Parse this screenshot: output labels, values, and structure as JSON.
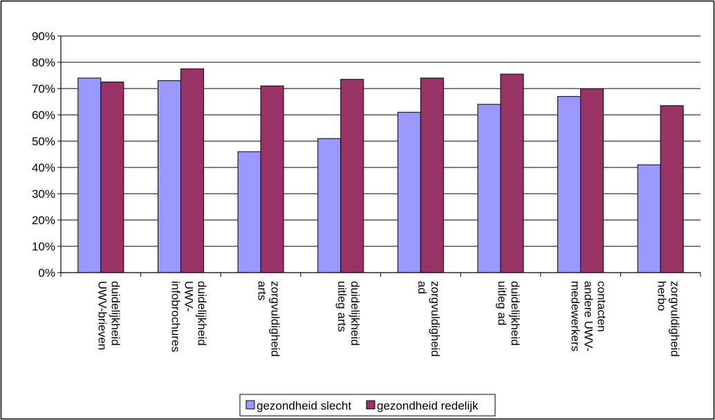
{
  "chart_data": {
    "type": "bar",
    "categories": [
      [
        "duidelijkheid",
        "UWV-brieven"
      ],
      [
        "duidelijkheid",
        "UWV-",
        "infobrochures"
      ],
      [
        "zorgvuldigheid",
        "arts"
      ],
      [
        "duidelijkheid",
        "uitleg arts"
      ],
      [
        "zorgvuldigheid",
        "ad"
      ],
      [
        "duidelijkheid",
        "uitleg ad"
      ],
      [
        "contacten",
        "andere UWV-",
        "medewerkers"
      ],
      [
        "zorgvuldigheid",
        "herbo"
      ]
    ],
    "series": [
      {
        "name": "gezondheid slecht",
        "color": "#9999ff",
        "values": [
          0.74,
          0.73,
          0.46,
          0.51,
          0.61,
          0.64,
          0.67,
          0.41
        ]
      },
      {
        "name": "gezondheid redelijk",
        "color": "#993366",
        "values": [
          0.725,
          0.775,
          0.71,
          0.735,
          0.74,
          0.755,
          0.7,
          0.635
        ]
      }
    ],
    "ylim": [
      0,
      0.9
    ],
    "yticks": [
      0,
      0.1,
      0.2,
      0.3,
      0.4,
      0.5,
      0.6,
      0.7,
      0.8,
      0.9
    ],
    "ytick_labels": [
      "0%",
      "10%",
      "20%",
      "30%",
      "40%",
      "50%",
      "60%",
      "70%",
      "80%",
      "90%"
    ],
    "grid": true,
    "legend_position": "bottom-center"
  }
}
